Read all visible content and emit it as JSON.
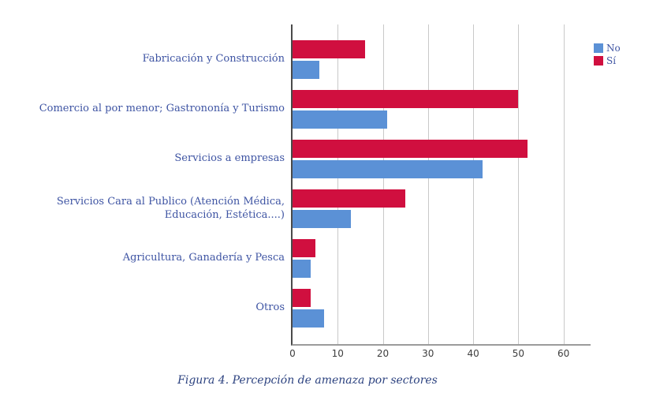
{
  "figure": {
    "caption": "Figura 4. Percepción de amenaza por sectores"
  },
  "chart_data": {
    "type": "bar",
    "orientation": "horizontal",
    "title": "",
    "xlabel": "",
    "ylabel": "",
    "categories": [
      "Fabricación y Construcción",
      "Comercio al por menor; Gastrononía y Turismo",
      "Servicios a empresas",
      "Servicios Cara al Publico (Atención Médica, Educación, Estética....)",
      "Agricultura, Ganadería y Pesca",
      "Otros"
    ],
    "series": [
      {
        "name": "No",
        "color": "#5B91D6",
        "values": [
          6,
          21,
          42,
          13,
          4,
          7
        ]
      },
      {
        "name": "Sí",
        "color": "#D00F3F",
        "values": [
          16,
          50,
          52,
          25,
          5,
          4
        ]
      }
    ],
    "bar_order_top_to_bottom": [
      "Sí",
      "No"
    ],
    "x_ticks": [
      0,
      10,
      20,
      30,
      40,
      50,
      60
    ],
    "xlim": [
      0,
      66
    ],
    "grid": true,
    "legend_position": "top-right",
    "colors": {
      "axis_left": "#4A4A4A",
      "axis_bottom": "#9B9B9B",
      "gridline": "#C9C9C9",
      "tick_label": "#3D3D3D",
      "category_label": "#3E54A3",
      "caption": "#2D4380"
    }
  }
}
